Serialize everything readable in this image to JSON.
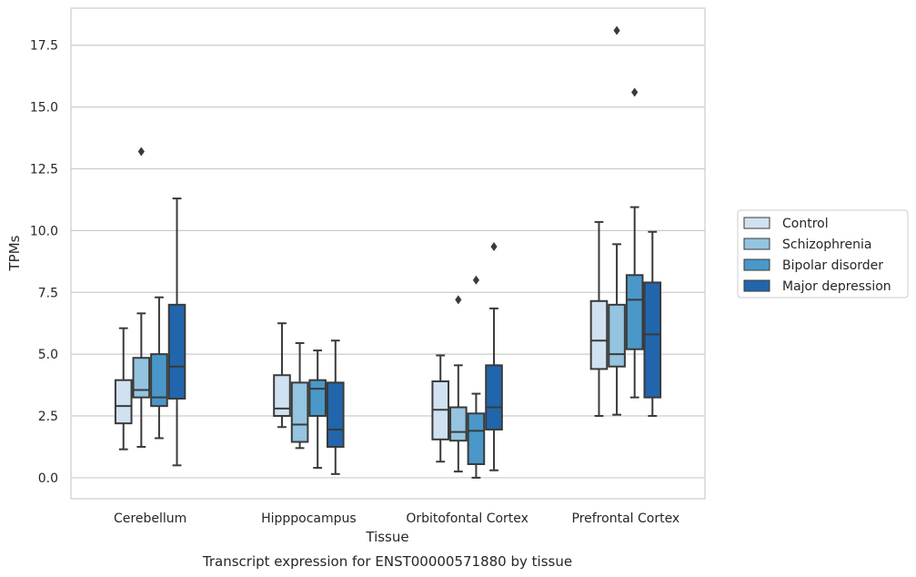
{
  "chart_data": {
    "type": "boxplot",
    "xlabel": "Tissue",
    "ylabel": "TPMs",
    "caption": "Transcript expression for ENST00000571880 by tissue",
    "ylim": [
      -0.85,
      19.0
    ],
    "yticks": [
      0.0,
      2.5,
      5.0,
      7.5,
      10.0,
      12.5,
      15.0,
      17.5
    ],
    "ytick_labels": [
      "0.0",
      "2.5",
      "5.0",
      "7.5",
      "10.0",
      "12.5",
      "15.0",
      "17.5"
    ],
    "grid": "horizontal",
    "legend_position": "right",
    "categories": [
      "Cerebellum",
      "Hipppocampus",
      "Orbitofontal Cortex",
      "Prefrontal Cortex"
    ],
    "series": [
      {
        "name": "Control",
        "color": "#d0e1f2",
        "boxes": [
          {
            "whislo": 1.15,
            "q1": 2.2,
            "med": 2.9,
            "q3": 3.95,
            "whishi": 6.05,
            "fliers": []
          },
          {
            "whislo": 2.05,
            "q1": 2.5,
            "med": 2.8,
            "q3": 4.15,
            "whishi": 6.25,
            "fliers": []
          },
          {
            "whislo": 0.65,
            "q1": 1.55,
            "med": 2.75,
            "q3": 3.9,
            "whishi": 4.95,
            "fliers": []
          },
          {
            "whislo": 2.5,
            "q1": 4.4,
            "med": 5.55,
            "q3": 7.15,
            "whishi": 10.35,
            "fliers": []
          }
        ]
      },
      {
        "name": "Schizophrenia",
        "color": "#94c4df",
        "boxes": [
          {
            "whislo": 1.25,
            "q1": 3.25,
            "med": 3.55,
            "q3": 4.85,
            "whishi": 6.65,
            "fliers": [
              13.2
            ]
          },
          {
            "whislo": 1.2,
            "q1": 1.45,
            "med": 2.15,
            "q3": 3.85,
            "whishi": 5.45,
            "fliers": []
          },
          {
            "whislo": 0.25,
            "q1": 1.5,
            "med": 1.85,
            "q3": 2.85,
            "whishi": 4.55,
            "fliers": [
              7.2
            ]
          },
          {
            "whislo": 2.55,
            "q1": 4.5,
            "med": 5.0,
            "q3": 7.0,
            "whishi": 9.45,
            "fliers": [
              18.1
            ]
          }
        ]
      },
      {
        "name": "Bipolar disorder",
        "color": "#4a98c9",
        "boxes": [
          {
            "whislo": 1.6,
            "q1": 2.9,
            "med": 3.25,
            "q3": 5.0,
            "whishi": 7.3,
            "fliers": []
          },
          {
            "whislo": 0.4,
            "q1": 2.5,
            "med": 3.6,
            "q3": 3.95,
            "whishi": 5.15,
            "fliers": []
          },
          {
            "whislo": 0.0,
            "q1": 0.55,
            "med": 1.9,
            "q3": 2.6,
            "whishi": 3.4,
            "fliers": [
              8.0
            ]
          },
          {
            "whislo": 3.25,
            "q1": 5.2,
            "med": 7.2,
            "q3": 8.2,
            "whishi": 10.95,
            "fliers": [
              15.6
            ]
          }
        ]
      },
      {
        "name": "Major depression",
        "color": "#2166ac",
        "boxes": [
          {
            "whislo": 0.5,
            "q1": 3.2,
            "med": 4.5,
            "q3": 7.0,
            "whishi": 11.3,
            "fliers": []
          },
          {
            "whislo": 0.15,
            "q1": 1.25,
            "med": 1.95,
            "q3": 3.85,
            "whishi": 5.55,
            "fliers": []
          },
          {
            "whislo": 0.3,
            "q1": 1.95,
            "med": 2.85,
            "q3": 4.55,
            "whishi": 6.85,
            "fliers": [
              9.35
            ]
          },
          {
            "whislo": 2.5,
            "q1": 3.25,
            "med": 5.8,
            "q3": 7.9,
            "whishi": 9.95,
            "fliers": []
          }
        ]
      }
    ]
  }
}
